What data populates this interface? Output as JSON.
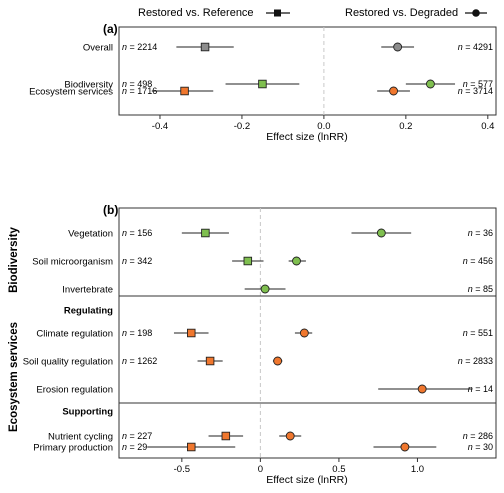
{
  "legend": {
    "items": [
      {
        "label": "Restored vs. Reference",
        "marker": "square",
        "color": "#111111"
      },
      {
        "label": "Restored vs. Degraded",
        "marker": "circle",
        "color": "#111111"
      }
    ]
  },
  "colors": {
    "gray": "#8c8c8c",
    "green": "#7fbf4f",
    "orange": "#f0772e",
    "ci_line": "#222222",
    "zero_line": "#c8c8c8",
    "frame": "#333333"
  },
  "chart_data": [
    {
      "type": "scatter",
      "panel_label": "(a)",
      "xlabel": "Effect size (lnRR)",
      "xlim": [
        -0.5,
        0.42
      ],
      "xticks": [
        -0.4,
        -0.2,
        0.0,
        0.2,
        0.4
      ],
      "xtick_labels": [
        "-0.4",
        "-0.2",
        "0.0",
        "0.2",
        "0.4"
      ],
      "grid": false,
      "series": [
        {
          "name": "Restored vs. Reference",
          "marker": "square"
        },
        {
          "name": "Restored vs. Degraded",
          "marker": "circle"
        }
      ],
      "rows": [
        {
          "label": "Overall",
          "color_key": "gray",
          "ref": {
            "est": -0.29,
            "lo": -0.36,
            "hi": -0.22,
            "n": "2214"
          },
          "deg": {
            "est": 0.18,
            "lo": 0.14,
            "hi": 0.22,
            "n": "4291"
          }
        },
        {
          "label": "Biodiversity",
          "color_key": "green",
          "ref": {
            "est": -0.15,
            "lo": -0.24,
            "hi": -0.06,
            "n": "498"
          },
          "deg": {
            "est": 0.26,
            "lo": 0.2,
            "hi": 0.32,
            "n": "577"
          }
        },
        {
          "label": "Ecosystem services",
          "color_key": "orange",
          "ref": {
            "est": -0.34,
            "lo": -0.42,
            "hi": -0.27,
            "n": "1716"
          },
          "deg": {
            "est": 0.17,
            "lo": 0.13,
            "hi": 0.21,
            "n": "3714"
          }
        }
      ]
    },
    {
      "type": "scatter",
      "panel_label": "(b)",
      "xlabel": "Effect size (lnRR)",
      "xlim": [
        -0.9,
        1.5
      ],
      "xticks": [
        -0.5,
        0.0,
        0.5,
        1.0
      ],
      "xtick_labels": [
        "-0.5",
        "0",
        "0.5",
        "1.0"
      ],
      "grid": false,
      "groups": [
        {
          "label": "Biodiversity",
          "rows": [
            0,
            1,
            2
          ]
        },
        {
          "label": "Ecosystem services",
          "rows": [
            4,
            5,
            6,
            8,
            9
          ]
        }
      ],
      "subheaders": [
        {
          "label": "Regulating",
          "row": 3
        },
        {
          "label": "Supporting",
          "row": 7
        }
      ],
      "rows": [
        {
          "label": "Vegetation",
          "color_key": "green",
          "ref": {
            "est": -0.35,
            "lo": -0.5,
            "hi": -0.2,
            "n": "156"
          },
          "deg": {
            "est": 0.77,
            "lo": 0.58,
            "hi": 0.96,
            "n": "36"
          }
        },
        {
          "label": "Soil microorganism",
          "color_key": "green",
          "ref": {
            "est": -0.08,
            "lo": -0.18,
            "hi": 0.02,
            "n": "342"
          },
          "deg": {
            "est": 0.23,
            "lo": 0.18,
            "hi": 0.29,
            "n": "456"
          }
        },
        {
          "label": "Invertebrate",
          "color_key": "green",
          "ref": null,
          "deg": {
            "est": 0.03,
            "lo": -0.1,
            "hi": 0.16,
            "n": "85"
          }
        },
        {
          "label": "Climate regulation",
          "color_key": "orange",
          "ref": {
            "est": -0.44,
            "lo": -0.55,
            "hi": -0.33,
            "n": "198"
          },
          "deg": {
            "est": 0.28,
            "lo": 0.22,
            "hi": 0.33,
            "n": "551"
          }
        },
        {
          "label": "Soil quality regulation",
          "color_key": "orange",
          "ref": {
            "est": -0.32,
            "lo": -0.4,
            "hi": -0.24,
            "n": "1262"
          },
          "deg": {
            "est": 0.11,
            "lo": 0.08,
            "hi": 0.14,
            "n": "2833"
          }
        },
        {
          "label": "Erosion regulation",
          "color_key": "orange",
          "ref": null,
          "deg": {
            "est": 1.03,
            "lo": 0.75,
            "hi": 1.35,
            "n": "14"
          }
        },
        {
          "label": "Nutrient cycling",
          "color_key": "orange",
          "ref": {
            "est": -0.22,
            "lo": -0.33,
            "hi": -0.11,
            "n": "227"
          },
          "deg": {
            "est": 0.19,
            "lo": 0.12,
            "hi": 0.26,
            "n": "286"
          }
        },
        {
          "label": "Primary production",
          "color_key": "orange",
          "ref": {
            "est": -0.44,
            "lo": -0.72,
            "hi": -0.16,
            "n": "29"
          },
          "deg": {
            "est": 0.92,
            "lo": 0.72,
            "hi": 1.12,
            "n": "30"
          }
        }
      ]
    }
  ]
}
